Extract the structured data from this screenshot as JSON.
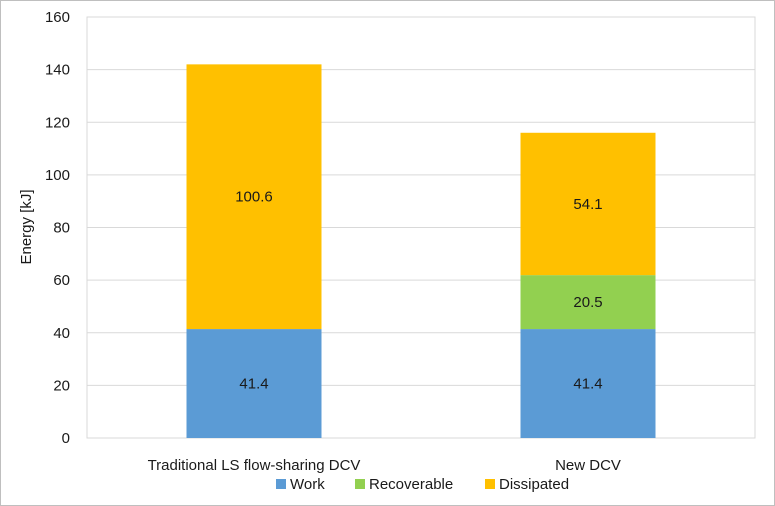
{
  "chart_data": {
    "type": "bar",
    "stacked": true,
    "title": "",
    "xlabel": "",
    "ylabel": "Energy [kJ]",
    "ylim": [
      0,
      160
    ],
    "yticks": [
      0,
      20,
      40,
      60,
      80,
      100,
      120,
      140,
      160
    ],
    "grid": true,
    "legend_position": "bottom",
    "categories": [
      "Traditional LS flow-sharing DCV",
      "New DCV"
    ],
    "series": [
      {
        "name": "Work",
        "color": "#5b9bd5",
        "values": [
          41.4,
          41.4
        ],
        "labels": [
          "41.4",
          "41.4"
        ]
      },
      {
        "name": "Recoverable",
        "color": "#92d050",
        "values": [
          0,
          20.5
        ],
        "labels": [
          "",
          "20.5"
        ]
      },
      {
        "name": "Dissipated",
        "color": "#ffc000",
        "values": [
          100.6,
          54.1
        ],
        "labels": [
          "100.6",
          "54.1"
        ]
      }
    ]
  }
}
